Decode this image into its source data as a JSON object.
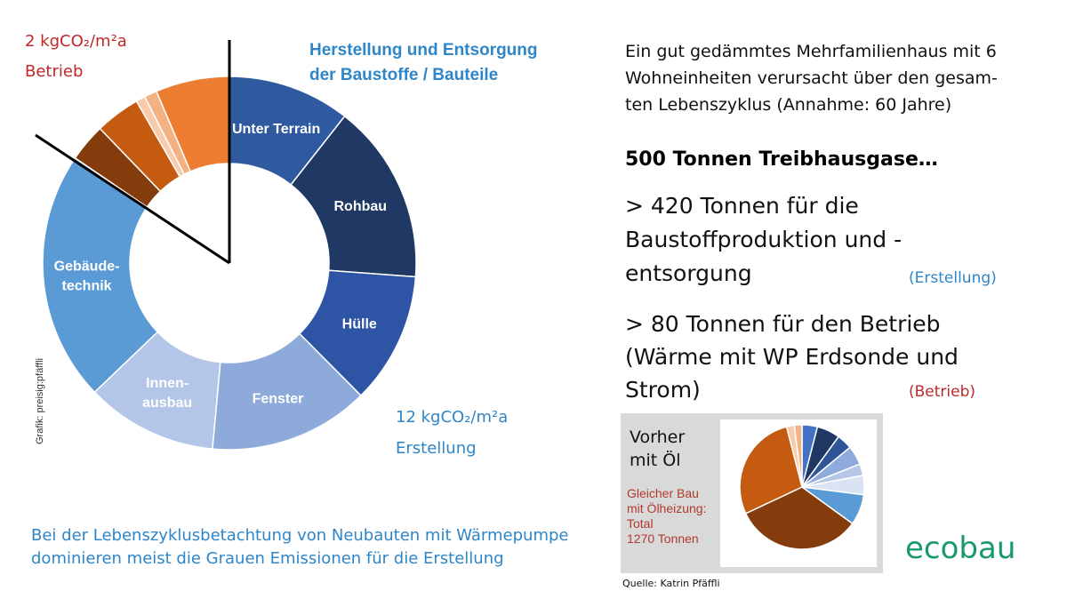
{
  "chart_data": [
    {
      "type": "donut",
      "categories": [
        "Unter Terrain",
        "Rohbau",
        "Hülle",
        "Fenster",
        "Innen-\nausbau",
        "Gebäude-\ntechnik",
        null,
        null,
        null,
        null,
        null
      ],
      "values": [
        10.6,
        15.6,
        11.4,
        13.9,
        11.4,
        21.7,
        3.3,
        3.9,
        0.8,
        1.1,
        6.4
      ],
      "colors": [
        "#2f5aa0",
        "#1f3864",
        "#2e55a5",
        "#8eaadb",
        "#b4c6e7",
        "#5b9bd5",
        "#843c0c",
        "#c55a11",
        "#f8cbad",
        "#f4b183",
        "#ed7d31"
      ]
    },
    {
      "type": "pie",
      "values": [
        4,
        6,
        4,
        5,
        3,
        5,
        8,
        33,
        28,
        2,
        2
      ],
      "colors": [
        "#4472c4",
        "#1f3864",
        "#2f5597",
        "#8faadc",
        "#b4c7e7",
        "#dae3f3",
        "#5b9bd5",
        "#843c0c",
        "#c55a11",
        "#f8cbad",
        "#f4b183"
      ]
    }
  ],
  "left": {
    "betrieb_value": "2 kgCO₂/m²a",
    "betrieb_label": "Betrieb",
    "title": [
      "Herstellung und Entsorgung",
      "der Baustoffe / Bauteile"
    ],
    "erstellung_value": "12 kgCO₂/m²a",
    "erstellung_label": "Erstellung",
    "credit": "Grafik: preisig:pfäffli",
    "caption": [
      "Bei der Lebenszyklusbetachtung von Neubauten mit Wärmepumpe",
      "dominieren meist die Grauen Emissionen für die Erstellung"
    ]
  },
  "right": {
    "intro": [
      "Ein gut gedämmtes Mehrfamilienhaus mit 6",
      "Wohneinheiten verursacht über den gesam-",
      "ten Lebenszyklus  (Annahme: 60 Jahre)"
    ],
    "headline": "500 Tonnen Treibhausgase…",
    "erstellung": [
      "> 420 Tonnen für die",
      "Baustoffproduktion und -",
      "entsorgung"
    ],
    "erstellung_tag": "(Erstellung)",
    "betrieb": [
      "> 80 Tonnen für den Betrieb",
      "(Wärme mit WP Erdsonde und",
      "Strom)"
    ],
    "betrieb_tag": "(Betrieb)",
    "box_title": [
      "Vorher",
      "mit Öl"
    ],
    "box_note": [
      "Gleicher Bau",
      "mit Ölheizung:",
      "Total",
      "1270 Tonnen"
    ],
    "source": "Quelle: Katrin Pfäffli",
    "logo": "ecobau"
  }
}
